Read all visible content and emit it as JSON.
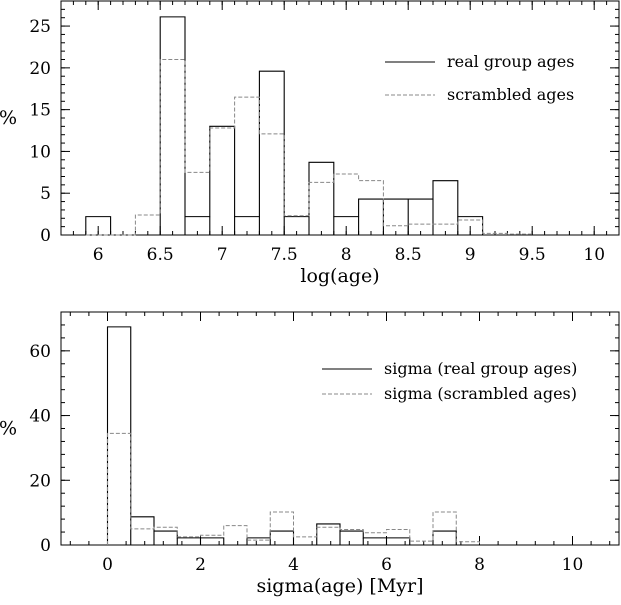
{
  "chart_data": [
    {
      "type": "histogram",
      "xlabel": "log(age)",
      "ylabel": "%",
      "xlim": [
        5.7,
        10.2
      ],
      "ylim": [
        0,
        28
      ],
      "xticks": [
        "6",
        "6.5",
        "7",
        "7.5",
        "8",
        "8.5",
        "9",
        "9.5",
        "10"
      ],
      "yticks": [
        "0",
        "5",
        "10",
        "15",
        "20",
        "25"
      ],
      "bin_edges": [
        5.9,
        6.1,
        6.3,
        6.5,
        6.7,
        6.9,
        7.1,
        7.3,
        7.5,
        7.7,
        7.9,
        8.1,
        8.3,
        8.5,
        8.7,
        8.9,
        9.1,
        9.3,
        9.5
      ],
      "legend_position": "right",
      "series": [
        {
          "name": "real group ages",
          "style": "solid",
          "color": "#000000",
          "values": [
            2.2,
            0,
            0,
            26.1,
            2.2,
            13.0,
            2.2,
            19.6,
            2.2,
            8.7,
            2.2,
            4.3,
            4.3,
            4.3,
            6.5,
            2.2,
            0,
            0
          ]
        },
        {
          "name": "scrambled ages",
          "style": "dashed",
          "color": "#888888",
          "values": [
            0,
            0,
            2.4,
            21.0,
            7.5,
            12.8,
            16.5,
            12.1,
            2.3,
            6.3,
            7.3,
            6.5,
            1.1,
            1.3,
            1.3,
            1.8,
            0.2,
            0.1
          ]
        }
      ]
    },
    {
      "type": "histogram",
      "xlabel": "sigma(age) [Myr]",
      "ylabel": "%",
      "xlim": [
        -1,
        11
      ],
      "ylim": [
        0,
        72
      ],
      "xticks": [
        "0",
        "2",
        "4",
        "6",
        "8",
        "10"
      ],
      "yticks": [
        "0",
        "20",
        "40",
        "60"
      ],
      "bin_edges": [
        0,
        0.5,
        1,
        1.5,
        2,
        2.5,
        3,
        3.5,
        4,
        4.5,
        5,
        5.5,
        6,
        6.5,
        7,
        7.5,
        8
      ],
      "legend_position": "right",
      "series": [
        {
          "name": "sigma (real group ages)",
          "style": "solid",
          "color": "#000000",
          "values": [
            67.4,
            8.7,
            4.3,
            2.2,
            2.2,
            0,
            2.2,
            4.3,
            0,
            6.5,
            4.3,
            2.2,
            2.2,
            0,
            4.3,
            0
          ]
        },
        {
          "name": "sigma (scrambled ages)",
          "style": "dashed",
          "color": "#888888",
          "values": [
            34.5,
            5.0,
            5.5,
            2.5,
            3.0,
            6.0,
            1.5,
            10.2,
            2.5,
            5.5,
            4.8,
            3.8,
            4.8,
            1.2,
            10.2,
            1.0
          ]
        }
      ]
    }
  ]
}
